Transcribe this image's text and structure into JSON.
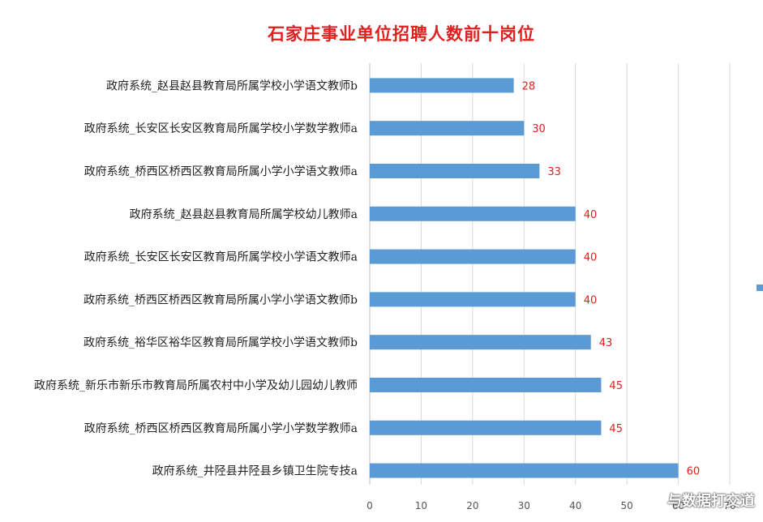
{
  "chart_data": {
    "type": "bar",
    "orientation": "horizontal",
    "title": "石家庄事业单位招聘人数前十岗位",
    "categories": [
      "政府系统_赵县赵县教育局所属学校小学语文教师b",
      "政府系统_长安区长安区教育局所属学校小学数学教师a",
      "政府系统_桥西区桥西区教育局所属小学小学语文教师a",
      "政府系统_赵县赵县教育局所属学校幼儿教师a",
      "政府系统_长安区长安区教育局所属学校小学语文教师a",
      "政府系统_桥西区桥西区教育局所属小学小学语文教师b",
      "政府系统_裕华区裕华区教育局所属学校小学语文教师b",
      "政府系统_新乐市新乐市教育局所属农村中小学及幼儿园幼儿教师",
      "政府系统_桥西区桥西区教育局所属小学小学数学教师a",
      "政府系统_井陉县井陉县乡镇卫生院专技a"
    ],
    "values": [
      28,
      30,
      33,
      40,
      40,
      40,
      43,
      45,
      45,
      60
    ],
    "xlim": [
      0,
      70
    ],
    "ticks": [
      "0",
      "10",
      "20",
      "30",
      "40",
      "50",
      "60",
      "70"
    ],
    "grid": true,
    "colors": {
      "bar": "#5b9bd5",
      "value_label": "#e02020",
      "grid": "#d9d9d9",
      "title": "#e02020"
    }
  },
  "watermark": "与数据打交道"
}
